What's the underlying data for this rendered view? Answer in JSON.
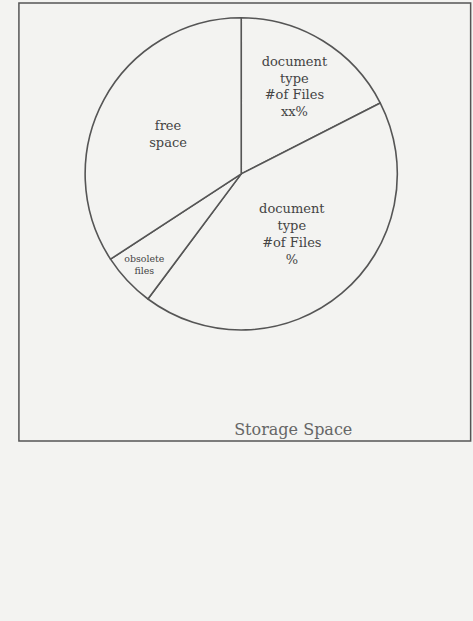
{
  "chart_data": {
    "type": "pie",
    "title": "Storage Space",
    "categories": [
      "document\ntype\n#of Files\nxx%",
      "document\ntype\n#of Files\n%",
      "obsolete\nfiles",
      "free\nspace"
    ],
    "values": [
      17.5,
      42.7,
      5.6,
      34.2
    ],
    "colors": [
      "#f3f3f1",
      "#f3f3f1",
      "#f3f3f1",
      "#f3f3f1"
    ]
  }
}
